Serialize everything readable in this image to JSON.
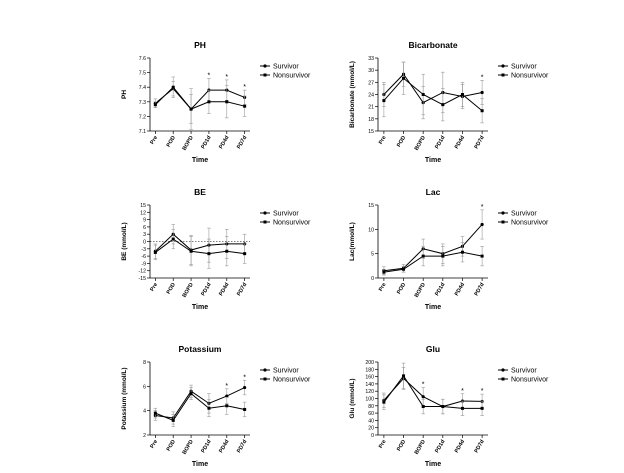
{
  "colors": {
    "ink": "#000000",
    "errorbar": "#9a9a9a",
    "background": "#ffffff"
  },
  "chart_data": [
    {
      "type": "line",
      "title": "PH",
      "xlabel": "Time",
      "ylabel": "PH",
      "categories": [
        "Pre",
        "POD",
        "BOPD",
        "PD1d",
        "PD4d",
        "PD7d"
      ],
      "ylim": [
        7.1,
        7.6
      ],
      "yticks": [
        "7.1",
        "7.2",
        "7.3",
        "7.4",
        "7.5",
        "7.6"
      ],
      "series": [
        {
          "name": "Survivor",
          "values": [
            7.29,
            7.39,
            7.25,
            7.38,
            7.38,
            7.33
          ],
          "err": [
            0.03,
            0.05,
            0.1,
            0.08,
            0.07,
            0.05
          ]
        },
        {
          "name": "Nonsurvivor",
          "values": [
            7.28,
            7.4,
            7.25,
            7.3,
            7.3,
            7.27
          ],
          "err": [
            0.02,
            0.07,
            0.14,
            0.08,
            0.11,
            0.07
          ]
        }
      ],
      "annotations": [
        {
          "category": "PD1d",
          "text": "*"
        },
        {
          "category": "PD4d",
          "text": "*"
        },
        {
          "category": "PD7d",
          "text": "*"
        }
      ],
      "legend": "right",
      "grid": false
    },
    {
      "type": "line",
      "title": "Bicarbonate",
      "xlabel": "Time",
      "ylabel": "Bicarbonate (mmol/L)",
      "categories": [
        "Pre",
        "POD",
        "BOPD",
        "PD1d",
        "PD4d",
        "PD7d"
      ],
      "ylim": [
        15,
        33
      ],
      "yticks": [
        "15",
        "18",
        "21",
        "24",
        "27",
        "30",
        "33"
      ],
      "series": [
        {
          "name": "Survivor",
          "values": [
            24,
            29,
            22,
            24.5,
            23.5,
            24.5
          ],
          "err": [
            3,
            3,
            4,
            5,
            3,
            3
          ]
        },
        {
          "name": "Nonsurvivor",
          "values": [
            22.5,
            28,
            24,
            21.5,
            24,
            20
          ],
          "err": [
            4,
            4,
            5,
            4,
            3,
            3
          ]
        }
      ],
      "annotations": [
        {
          "category": "PD7d",
          "text": "*"
        }
      ],
      "legend": "right",
      "grid": false
    },
    {
      "type": "line",
      "title": "BE",
      "xlabel": "Time",
      "ylabel": "BE (mmol/L)",
      "categories": [
        "Pre",
        "POD",
        "BOPD",
        "PD1d",
        "PD4d",
        "PD7d"
      ],
      "ylim": [
        -15,
        15
      ],
      "yticks": [
        "-15",
        "-12",
        "-9",
        "-6",
        "-3",
        "0",
        "3",
        "6",
        "9",
        "12",
        "15"
      ],
      "series": [
        {
          "name": "Survivor",
          "values": [
            -4,
            3,
            -3.5,
            -1.5,
            -1,
            -1
          ],
          "err": [
            3,
            4,
            6,
            7,
            6,
            4
          ]
        },
        {
          "name": "Nonsurvivor",
          "values": [
            -4.5,
            1,
            -4,
            -5,
            -4,
            -5
          ],
          "err": [
            3,
            4,
            6,
            6,
            6,
            4
          ]
        }
      ],
      "annotations": [],
      "legend": "right",
      "grid": false
    },
    {
      "type": "line",
      "title": "Lac",
      "xlabel": "Time",
      "ylabel": "Lac(mmol/L)",
      "categories": [
        "Pre",
        "POD",
        "BOPD",
        "PD1d",
        "PD4d",
        "PD7d"
      ],
      "ylim": [
        0,
        15
      ],
      "yticks": [
        "0",
        "5",
        "10",
        "15"
      ],
      "series": [
        {
          "name": "Survivor",
          "values": [
            1.5,
            2,
            6,
            5,
            6.5,
            11
          ],
          "err": [
            0.8,
            0.8,
            2,
            2,
            2,
            3
          ]
        },
        {
          "name": "Nonsurvivor",
          "values": [
            1.2,
            1.8,
            4.5,
            4.5,
            5.3,
            4.5
          ],
          "err": [
            0.6,
            0.6,
            2,
            2,
            2,
            2
          ]
        }
      ],
      "annotations": [
        {
          "category": "PD7d",
          "text": "*"
        }
      ],
      "legend": "right",
      "grid": false
    },
    {
      "type": "line",
      "title": "Potassium",
      "xlabel": "Time",
      "ylabel": "Potassium (mmol/L)",
      "categories": [
        "Pre",
        "POD",
        "BOPD",
        "PD1d",
        "PD4d",
        "PD7d"
      ],
      "ylim": [
        2,
        8
      ],
      "yticks": [
        "2",
        "4",
        "6",
        "8"
      ],
      "series": [
        {
          "name": "Survivor",
          "values": [
            3.6,
            3.4,
            5.6,
            4.6,
            5.2,
            5.9
          ],
          "err": [
            0.4,
            0.5,
            0.5,
            0.8,
            0.6,
            0.6
          ]
        },
        {
          "name": "Nonsurvivor",
          "values": [
            3.8,
            3.2,
            5.4,
            4.2,
            4.4,
            4.1
          ],
          "err": [
            0.4,
            0.5,
            0.5,
            0.7,
            0.7,
            0.6
          ]
        }
      ],
      "annotations": [
        {
          "category": "PD4d",
          "text": "*"
        },
        {
          "category": "PD7d",
          "text": "*"
        }
      ],
      "legend": "right",
      "grid": false
    },
    {
      "type": "line",
      "title": "Glu",
      "xlabel": "Time",
      "ylabel": "Glu (mmol/L)",
      "categories": [
        "Pre",
        "POD",
        "BOPD",
        "PD1d",
        "PD4d",
        "PD7d"
      ],
      "ylim": [
        0,
        200
      ],
      "yticks": [
        "0",
        "20",
        "40",
        "60",
        "80",
        "100",
        "120",
        "140",
        "160",
        "180",
        "200"
      ],
      "series": [
        {
          "name": "Survivor",
          "values": [
            95,
            155,
            105,
            78,
            93,
            92
          ],
          "err": [
            20,
            30,
            25,
            20,
            20,
            20
          ]
        },
        {
          "name": "Nonsurvivor",
          "values": [
            90,
            162,
            78,
            78,
            73,
            73
          ],
          "err": [
            20,
            35,
            20,
            20,
            20,
            20
          ]
        }
      ],
      "annotations": [
        {
          "category": "BOPD",
          "text": "*"
        },
        {
          "category": "PD4d",
          "text": "*"
        },
        {
          "category": "PD7d",
          "text": "*"
        }
      ],
      "legend": "right",
      "grid": false
    }
  ]
}
